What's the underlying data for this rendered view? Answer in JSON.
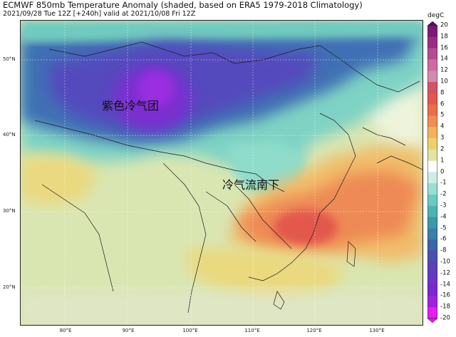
{
  "header": {
    "title": "ECMWF 850mb Temperature Anomaly (shaded, based on ERA5 1979-2018 Climatology)",
    "subtitle": "2021/09/28 Tue 12Z [+240h] valid at 2021/10/08 Fri 12Z"
  },
  "map": {
    "lat_labels": [
      "50°N",
      "40°N",
      "30°N",
      "20°N"
    ],
    "lon_labels": [
      "80°E",
      "90°E",
      "100°E",
      "110°E",
      "120°E",
      "130°E"
    ],
    "annotations": {
      "cold_air_mass": "紫色冷气团",
      "cold_air_south": "冷气流南下"
    }
  },
  "colorbar": {
    "unit": "degC",
    "ticks": [
      "20",
      "18",
      "16",
      "14",
      "12",
      "10",
      "8",
      "6",
      "5",
      "4",
      "3",
      "2",
      "1",
      "0",
      "-1",
      "-2",
      "-3",
      "-4",
      "-5",
      "-6",
      "-8",
      "-10",
      "-12",
      "-14",
      "-16",
      "-18",
      "-20"
    ],
    "colors": [
      "#5e0b63",
      "#7a1a76",
      "#9a2b83",
      "#b84a95",
      "#cd6aa3",
      "#d38aaf",
      "#d25464",
      "#e2574f",
      "#ea6e4b",
      "#f18d50",
      "#f4b15d",
      "#efd16b",
      "#e3e4a0",
      "#ffffff",
      "#cdeee4",
      "#9adfd2",
      "#6acbc2",
      "#4cb3b5",
      "#3c99a8",
      "#3a7fa8",
      "#3d63a8",
      "#4a4fb0",
      "#5b3fbb",
      "#6a34c6",
      "#7a26d0",
      "#a31fe0",
      "#e61cf0"
    ]
  }
}
